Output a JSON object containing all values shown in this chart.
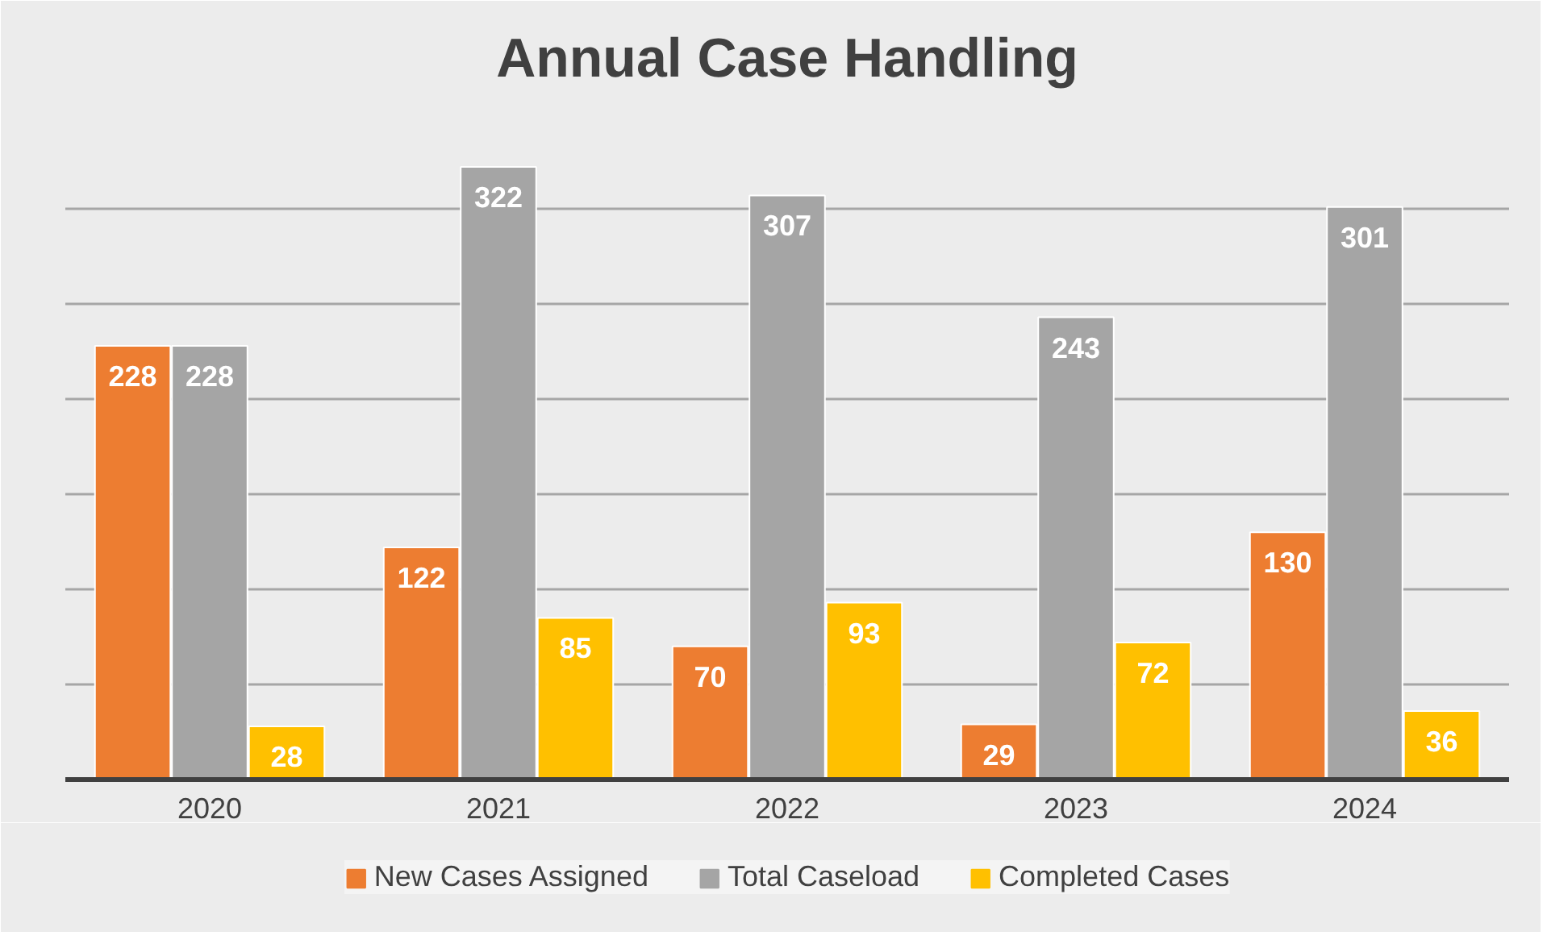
{
  "chart_data": {
    "type": "bar",
    "title": "Annual Case Handling",
    "categories": [
      "2020",
      "2021",
      "2022",
      "2023",
      "2024"
    ],
    "series": [
      {
        "name": "New Cases Assigned",
        "color": "#ed7d31",
        "values": [
          228,
          122,
          70,
          29,
          130
        ]
      },
      {
        "name": "Total Caseload",
        "color": "#a5a5a5",
        "values": [
          228,
          322,
          307,
          243,
          301
        ]
      },
      {
        "name": "Completed Cases",
        "color": "#ffc000",
        "values": [
          28,
          85,
          93,
          72,
          36
        ]
      }
    ],
    "ylim": [
      0,
      350
    ],
    "yticks": [
      {
        "value": 0,
        "label": null
      },
      {
        "value": 50,
        "label": null
      },
      {
        "value": 100,
        "label": null
      },
      {
        "value": 150,
        "label": null
      },
      {
        "value": 200,
        "label": null
      },
      {
        "value": 250,
        "label": null
      },
      {
        "value": 300,
        "label": null
      },
      {
        "value": 350,
        "label": null
      }
    ],
    "tick_labels": "x",
    "grid": "y",
    "legend": "bottom",
    "data_labels": true
  }
}
